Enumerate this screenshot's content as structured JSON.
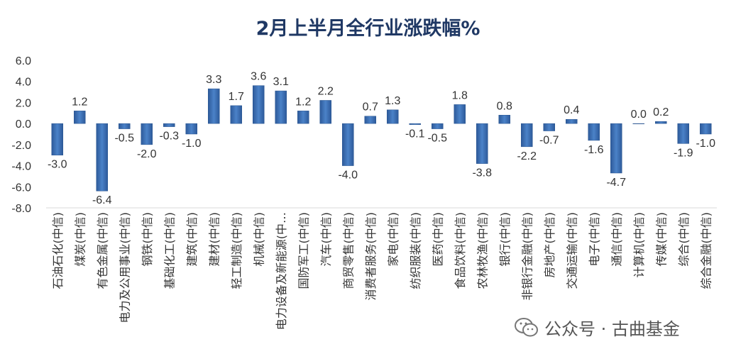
{
  "chart_data": {
    "type": "bar",
    "title": "2月上半月全行业涨跌幅%",
    "categories": [
      "石油石化(中信)",
      "煤炭(中信)",
      "有色金属(中信)",
      "电力及公用事业(中信)",
      "钢铁(中信)",
      "基础化工(中信)",
      "建筑(中信)",
      "建材(中信)",
      "轻工制造(中信)",
      "机械(中信)",
      "电力设备及新能源(中…",
      "国防军工(中信)",
      "汽车(中信)",
      "商贸零售(中信)",
      "消费者服务(中信)",
      "家电(中信)",
      "纺织服装(中信)",
      "医药(中信)",
      "食品饮料(中信)",
      "农林牧渔(中信)",
      "银行(中信)",
      "非银行金融(中信)",
      "房地产(中信)",
      "交通运输(中信)",
      "电子(中信)",
      "通信(中信)",
      "计算机(中信)",
      "传媒(中信)",
      "综合(中信)",
      "综合金融(中信)"
    ],
    "values": [
      -3.0,
      1.2,
      -6.4,
      -0.5,
      -2.0,
      -0.3,
      -1.0,
      3.3,
      1.7,
      3.6,
      3.1,
      1.2,
      2.2,
      -4.0,
      0.7,
      1.3,
      -0.1,
      -0.5,
      1.8,
      -3.8,
      0.8,
      -2.2,
      -0.7,
      0.4,
      -1.6,
      -4.7,
      0.0,
      0.2,
      -1.9,
      -1.0
    ],
    "ylim": [
      -8,
      6
    ],
    "yticks": [
      "6.0",
      "4.0",
      "2.0",
      "0.0",
      "-2.0",
      "-4.0",
      "-6.0",
      "-8.0"
    ],
    "grid": false,
    "bar_color": "#3a6eb5",
    "xlabel": "",
    "ylabel": ""
  },
  "watermark": {
    "text": "公众号 · 古曲基金",
    "icon": "wechat-icon"
  }
}
